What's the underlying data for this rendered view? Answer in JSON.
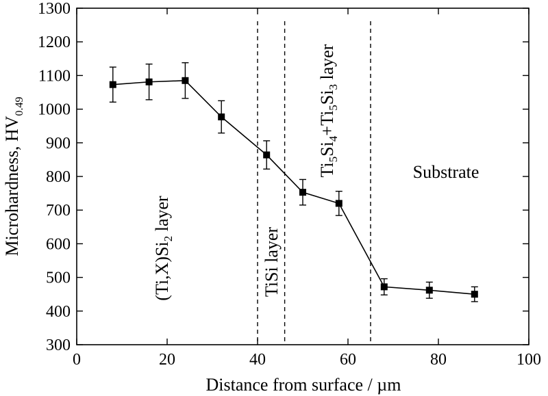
{
  "chart_data": {
    "type": "line",
    "xlabel": "Distance from surface / µm",
    "ylabel": {
      "main": "Microhardness, HV",
      "subscript": "0.49"
    },
    "xlim": [
      0,
      100
    ],
    "ylim": [
      300,
      1300
    ],
    "x_ticks": [
      "0",
      "20",
      "40",
      "60",
      "80",
      "100"
    ],
    "y_ticks": [
      "300",
      "400",
      "500",
      "600",
      "700",
      "800",
      "900",
      "1000",
      "1100",
      "1200",
      "1300"
    ],
    "grid": false,
    "marker": "square",
    "series": [
      {
        "x": [
          8,
          16,
          24,
          32,
          42,
          50,
          58,
          68,
          78,
          88
        ],
        "y": [
          1073,
          1081,
          1085,
          977,
          864,
          753,
          720,
          472,
          462,
          450
        ],
        "yerr": [
          52,
          53,
          53,
          48,
          42,
          38,
          36,
          24,
          24,
          22
        ]
      }
    ],
    "boundaries": [
      40,
      46,
      65
    ],
    "annotations": [
      {
        "id": "titsi2",
        "parts": [
          [
            "(Ti,X)Si",
            "n"
          ],
          [
            "2",
            "sub"
          ],
          [
            " layer",
            "n"
          ]
        ]
      },
      {
        "id": "tisi",
        "parts": [
          [
            "TiSi layer",
            "n"
          ]
        ]
      },
      {
        "id": "ti5si4",
        "parts": [
          [
            "Ti",
            "n"
          ],
          [
            "5",
            "sub"
          ],
          [
            "Si",
            "n"
          ],
          [
            "4",
            "sub"
          ],
          [
            "+Ti",
            "n"
          ],
          [
            "5",
            "sub"
          ],
          [
            "Si",
            "n"
          ],
          [
            "3",
            "sub"
          ],
          [
            " layer",
            "n"
          ]
        ]
      },
      {
        "id": "substrate",
        "parts": [
          [
            "Substrate",
            "n"
          ]
        ]
      }
    ]
  }
}
